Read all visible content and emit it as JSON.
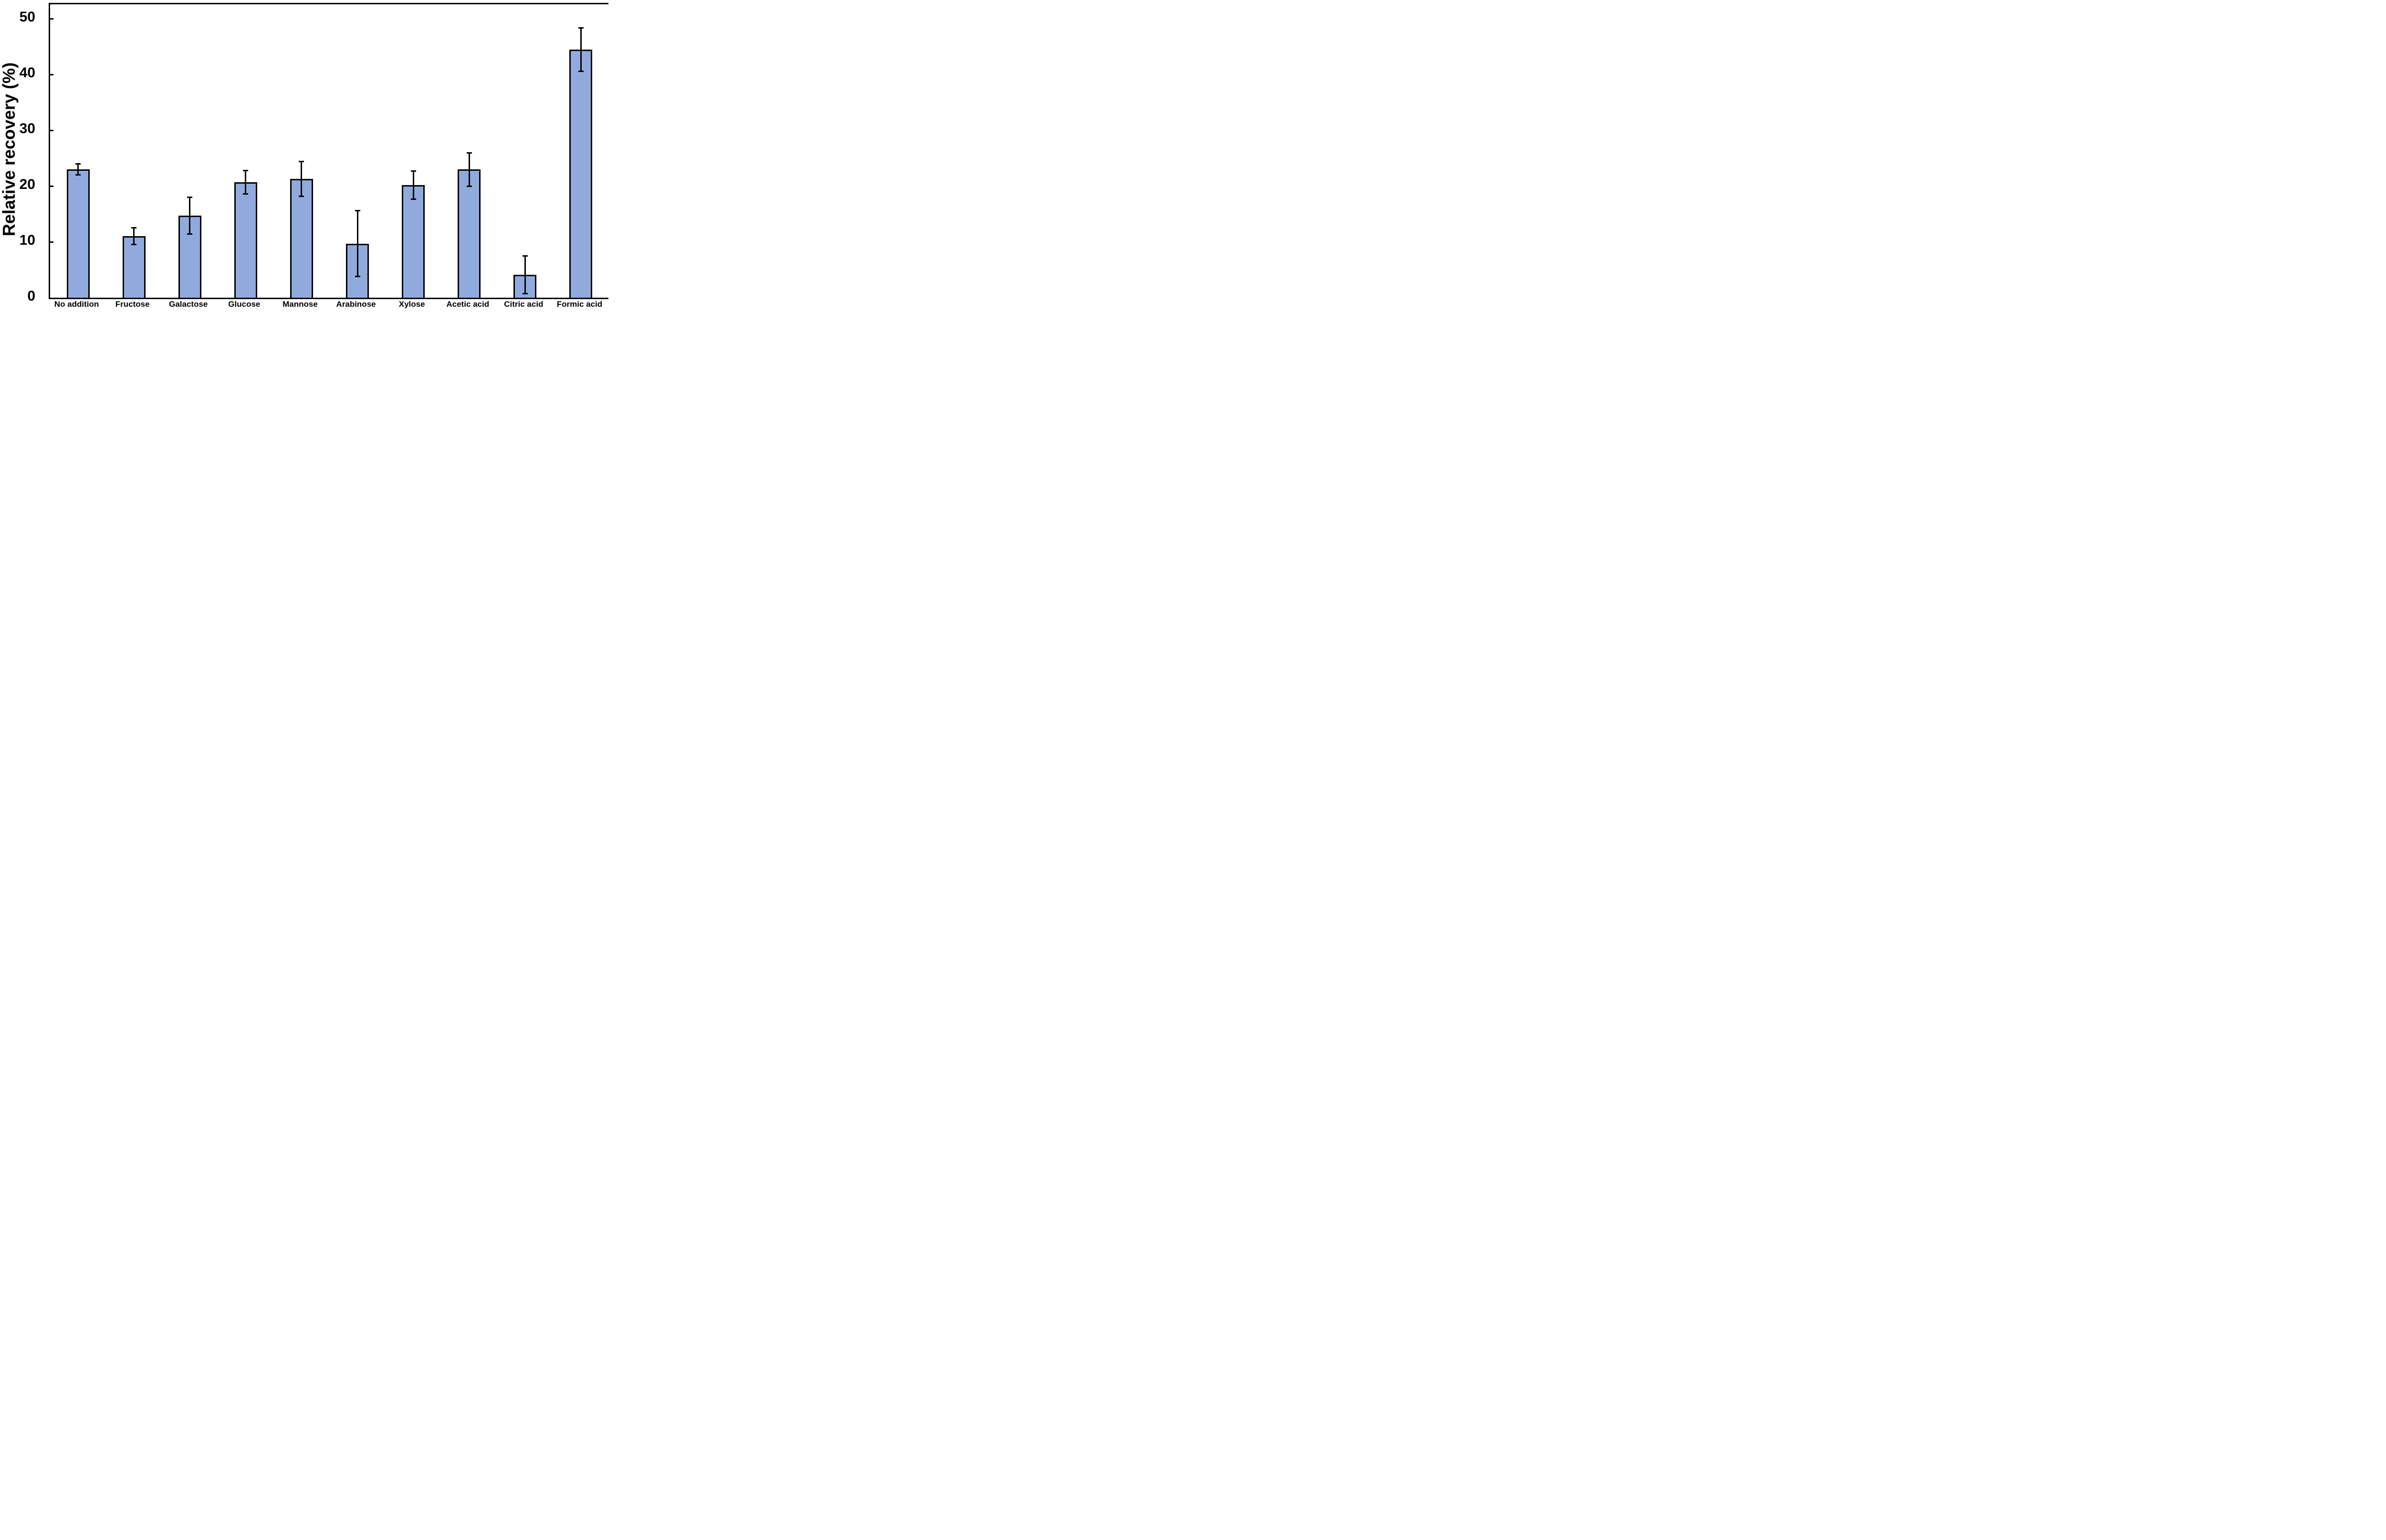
{
  "chart_data": {
    "type": "bar",
    "title": "",
    "xlabel": "",
    "ylabel": "Relative recovery (%)",
    "ylim": [
      0,
      52.6
    ],
    "yticks": [
      0,
      10,
      20,
      30,
      40,
      50
    ],
    "grid": false,
    "legend": "none",
    "bar_fill_color": "#91aadd",
    "bar_border_color": "#000000",
    "error_bar_color": "#000000",
    "frame": "full-box",
    "categories": [
      "No addition",
      "Fructose",
      "Galactose",
      "Glucose",
      "Mannose",
      "Arabinose",
      "Xylose",
      "Acetic acid",
      "Citric acid",
      "Formic acid"
    ],
    "series": [
      {
        "name": "Relative recovery",
        "values": [
          23.0,
          11.0,
          14.7,
          20.7,
          21.3,
          9.7,
          20.2,
          23.0,
          4.1,
          44.5
        ],
        "errors": [
          1.0,
          1.5,
          3.3,
          2.1,
          3.1,
          5.9,
          2.5,
          3.0,
          3.4,
          3.9
        ]
      }
    ]
  }
}
